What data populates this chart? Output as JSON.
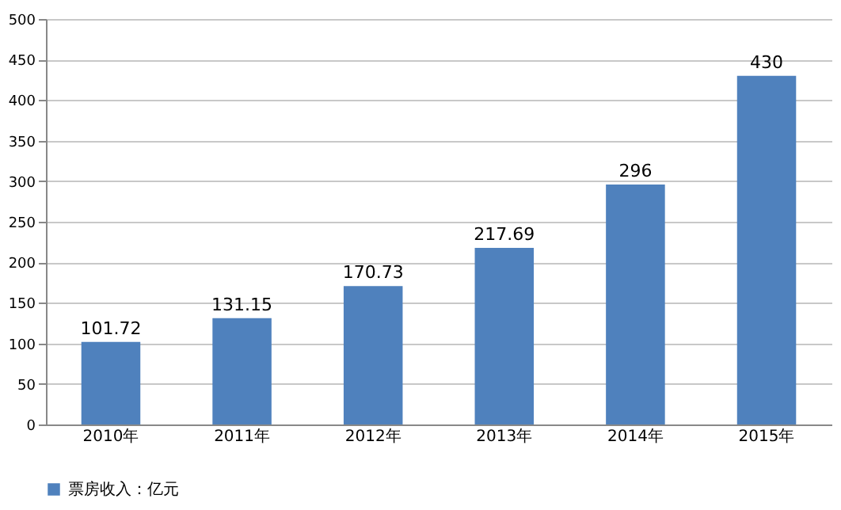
{
  "chart_data": {
    "type": "bar",
    "categories": [
      "2010年",
      "2011年",
      "2012年",
      "2013年",
      "2014年",
      "2015年"
    ],
    "series": [
      {
        "name": "票房收入：亿元",
        "color": "#4f81bd",
        "values": [
          101.72,
          131.15,
          170.73,
          217.69,
          296,
          430
        ]
      }
    ],
    "ylim": [
      0,
      500
    ],
    "yticks": [
      0,
      50,
      100,
      150,
      200,
      250,
      300,
      350,
      400,
      450,
      500
    ],
    "grid": "y",
    "data_labels": true,
    "legend": "bottom"
  }
}
